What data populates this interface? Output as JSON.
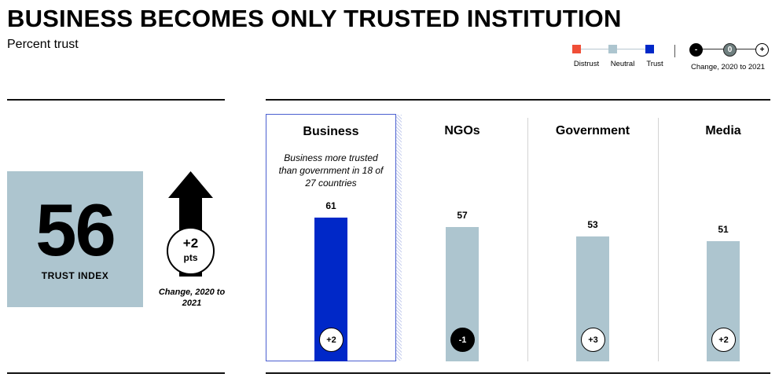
{
  "title": "BUSINESS BECOMES ONLY TRUSTED INSTITUTION",
  "subtitle": "Percent trust",
  "legend": {
    "items": [
      {
        "label": "Distrust",
        "color": "#f04e37"
      },
      {
        "label": "Neutral",
        "color": "#adc5cf"
      },
      {
        "label": "Trust",
        "color": "#0028c8"
      }
    ],
    "change_symbols": [
      "-",
      "0",
      "+"
    ],
    "change_label": "Change, 2020 to 2021"
  },
  "trust_index": {
    "value": "56",
    "label": "TRUST INDEX",
    "change_value": "+2",
    "change_unit": "pts",
    "change_caption": "Change, 2020 to 2021"
  },
  "chart_data": {
    "type": "bar",
    "title": "BUSINESS BECOMES ONLY TRUSTED INSTITUTION",
    "subtitle": "Percent trust",
    "categories": [
      "Business",
      "NGOs",
      "Government",
      "Media"
    ],
    "values": [
      61,
      57,
      53,
      51
    ],
    "change_2020_to_2021": [
      "+2",
      "-1",
      "+3",
      "+2"
    ],
    "bar_status": [
      "trust",
      "neutral",
      "neutral",
      "neutral"
    ],
    "annotations": [
      {
        "category": "Business",
        "text": "Business more trusted than government in 18 of 27 countries"
      }
    ],
    "ylim": [
      0,
      100
    ],
    "grid": false,
    "legend_position": "top-right"
  },
  "colors": {
    "trust": "#0028c8",
    "neutral": "#adc5cf",
    "distrust": "#f04e37",
    "positive_badge": "#ffffff",
    "negative_badge": "#000000"
  }
}
